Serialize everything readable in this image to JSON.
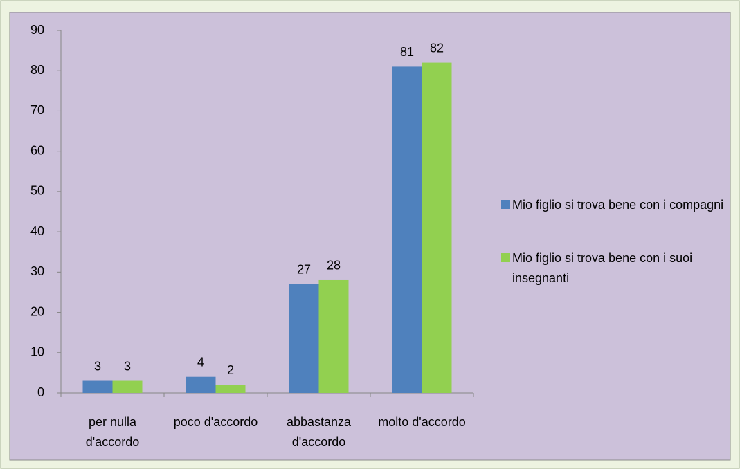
{
  "chart_data": {
    "type": "bar",
    "categories": [
      "per nulla d'accordo",
      "poco d'accordo",
      "abbastanza d'accordo",
      "molto d'accordo"
    ],
    "series": [
      {
        "name": "Mio figlio si trova bene con i compagni",
        "color": "#4f81bd",
        "values": [
          3,
          4,
          27,
          81
        ]
      },
      {
        "name": "Mio figlio si trova bene con i suoi insegnanti",
        "color": "#92d050",
        "values": [
          3,
          2,
          28,
          82
        ]
      }
    ],
    "ylim": [
      0,
      90
    ],
    "yticks": [
      0,
      10,
      20,
      30,
      40,
      50,
      60,
      70,
      80,
      90
    ],
    "grid": false,
    "legend": "right"
  }
}
